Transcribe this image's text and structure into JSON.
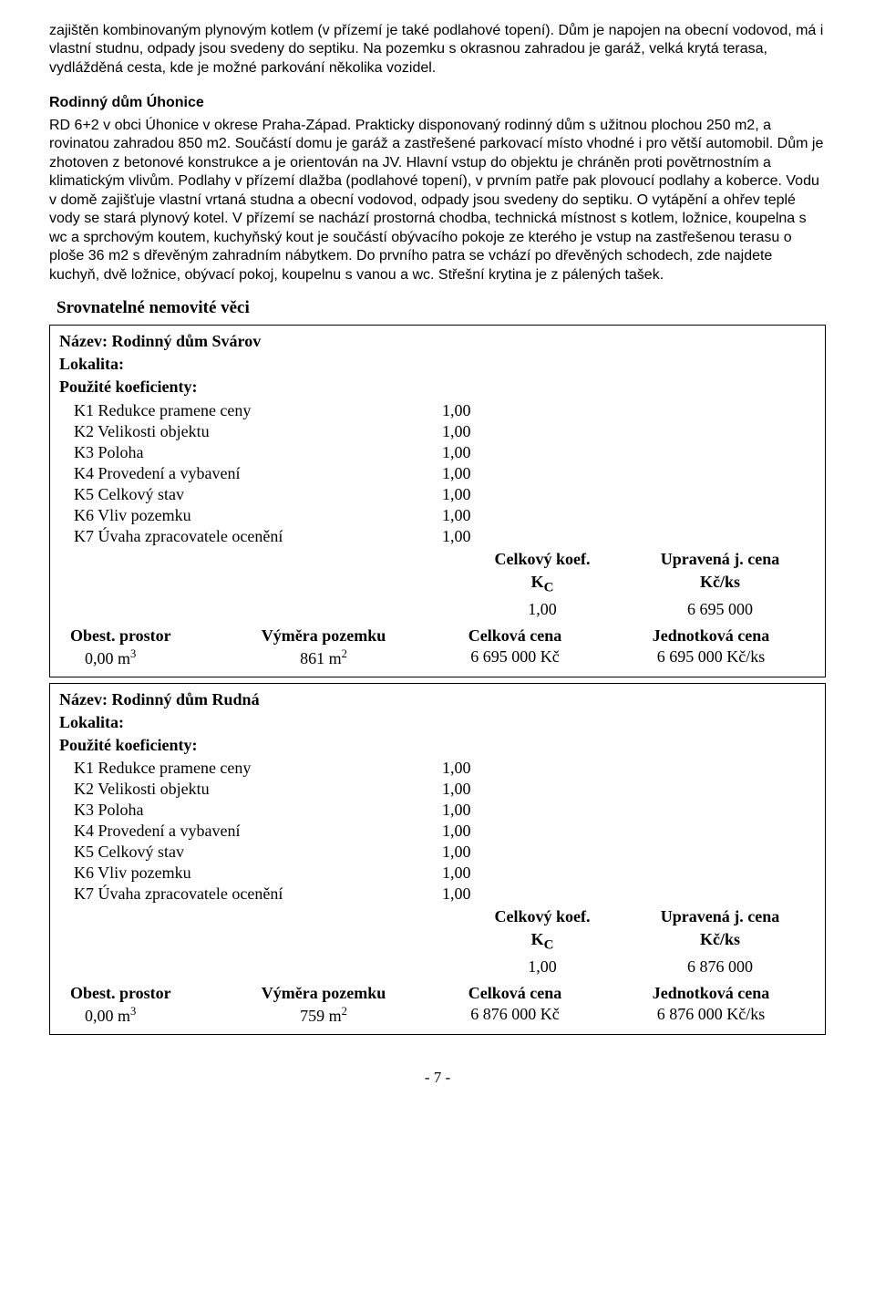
{
  "intro_para": "zajištěn kombinovaným plynovým kotlem (v přízemí je také podlahové topení). Dům je napojen na obecní vodovod, má i vlastní studnu, odpady jsou svedeny do septiku. Na pozemku s okrasnou zahradou je garáž, velká krytá terasa, vydlážděná cesta, kde je možné parkování několika vozidel.",
  "uhonice_heading": "Rodinný dům Úhonice",
  "uhonice_para": "RD 6+2 v obci Úhonice v okrese Praha-Západ. Prakticky disponovaný rodinný dům s užitnou plochou 250 m2, a rovinatou zahradou 850 m2. Součástí domu je garáž a zastřešené parkovací místo vhodné i pro větší automobil. Dům je zhotoven z betonové konstrukce a je orientován na JV. Hlavní vstup do objektu je chráněn proti povětrnostním a klimatickým vlivům. Podlahy v přízemí dlažba (podlahové topení), v prvním patře pak plovoucí podlahy a koberce. Vodu v domě zajišťuje vlastní vrtaná studna a obecní vodovod, odpady jsou svedeny do septiku. O vytápění a ohřev teplé vody se stará plynový kotel. V přízemí se nachází prostorná chodba, technická místnost s kotlem, ložnice, koupelna s wc a sprchovým koutem, kuchyňský kout je součástí obývacího pokoje ze kterého je vstup na zastřešenou terasu o ploše 36 m2 s dřevěným zahradním nábytkem. Do prvního patra se vchází po dřevěných schodech, zde najdete kuchyň, dvě ložnice, obývací pokoj, koupelnu s vanou a wc. Střešní krytina je z pálených tašek.",
  "srov_heading": "Srovnatelné nemovité věci",
  "labels": {
    "nazev_prefix": "Název: ",
    "lokalita": "Lokalita:",
    "pk": "Použité koeficienty:",
    "celkovy_koef": "Celkový koef.",
    "kc": "K",
    "kc_sub": "C",
    "upravena": "Upravená j. cena",
    "kcks": "Kč/ks",
    "obest": "Obest. prostor",
    "vymera": "Výměra pozemku",
    "celkova": "Celková cena",
    "jednotkova": "Jednotková cena"
  },
  "koef_labels": {
    "k1": "K1 Redukce pramene ceny",
    "k2": "K2 Velikosti objektu",
    "k3": "K3 Poloha",
    "k4": "K4 Provedení a vybavení",
    "k5": "K5 Celkový stav",
    "k6": "K6 Vliv pozemku",
    "k7": "K7 Úvaha zpracovatele ocenění"
  },
  "box1": {
    "name": "Rodinný dům Svárov",
    "k1": "1,00",
    "k2": "1,00",
    "k3": "1,00",
    "k4": "1,00",
    "k5": "1,00",
    "k6": "1,00",
    "k7": "1,00",
    "koef_total": "1,00",
    "upravena_cena": "6 695 000",
    "obest_val": "0,00 m",
    "obest_sup": "3",
    "vymera_val": "861 m",
    "vymera_sup": "2",
    "celkova_cena": "6 695 000 Kč",
    "jednotkova_cena": "6 695 000 Kč/ks"
  },
  "box2": {
    "name": "Rodinný dům Rudná",
    "k1": "1,00",
    "k2": "1,00",
    "k3": "1,00",
    "k4": "1,00",
    "k5": "1,00",
    "k6": "1,00",
    "k7": "1,00",
    "koef_total": "1,00",
    "upravena_cena": "6 876 000",
    "obest_val": "0,00 m",
    "obest_sup": "3",
    "vymera_val": "759 m",
    "vymera_sup": "2",
    "celkova_cena": "6 876 000 Kč",
    "jednotkova_cena": "6 876 000 Kč/ks"
  },
  "footer": "- 7 -"
}
